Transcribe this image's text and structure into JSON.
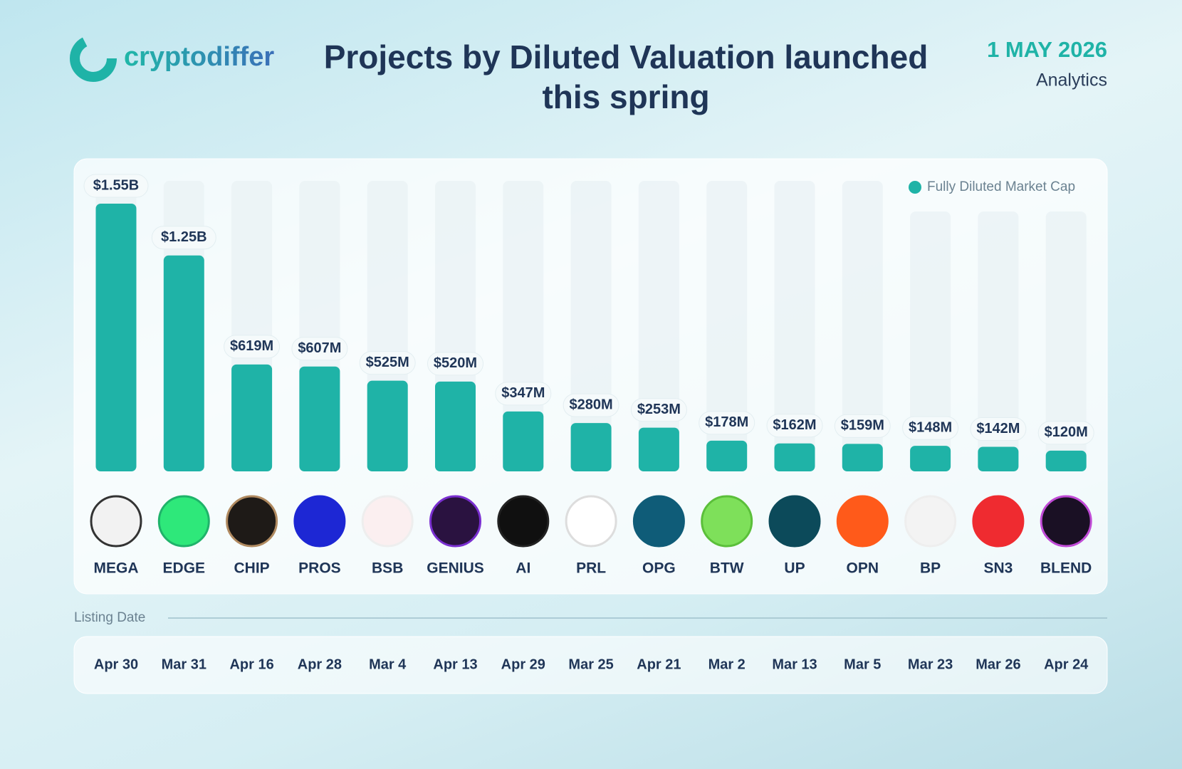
{
  "header": {
    "logo": "cryptodiffer",
    "date": "1 MAY 2026",
    "subtitle": "Analytics"
  },
  "chart_data": {
    "type": "bar",
    "title": "Projects by Diluted Valuation launched this spring",
    "categories": [
      "MEGA",
      "EDGE",
      "CHIP",
      "PROS",
      "BSB",
      "GENIUS",
      "AI",
      "PRL",
      "OPG",
      "BTW",
      "UP",
      "OPN",
      "BP",
      "SN3",
      "BLEND"
    ],
    "series": [
      {
        "name": "Fully Diluted Market Cap",
        "color": "#1fb3a7",
        "values": [
          1550000000,
          1250000000,
          619000000,
          607000000,
          525000000,
          520000000,
          347000000,
          280000000,
          253000000,
          178000000,
          162000000,
          159000000,
          148000000,
          142000000,
          120000000
        ],
        "value_labels": [
          "$1.55B",
          "$1.25B",
          "$619M",
          "$607M",
          "$525M",
          "$520M",
          "$347M",
          "$280M",
          "$253M",
          "$178M",
          "$162M",
          "$159M",
          "$148M",
          "$142M",
          "$120M"
        ]
      }
    ],
    "listing_date_label": "Listing Date",
    "listing_dates": [
      "Apr 30",
      "Mar 31",
      "Apr 16",
      "Apr 28",
      "Mar 4",
      "Apr 13",
      "Apr 29",
      "Mar 25",
      "Apr 21",
      "Mar 2",
      "Mar 13",
      "Mar 5",
      "Mar 23",
      "Mar 26",
      "Apr 24"
    ],
    "legend": "top-right"
  }
}
